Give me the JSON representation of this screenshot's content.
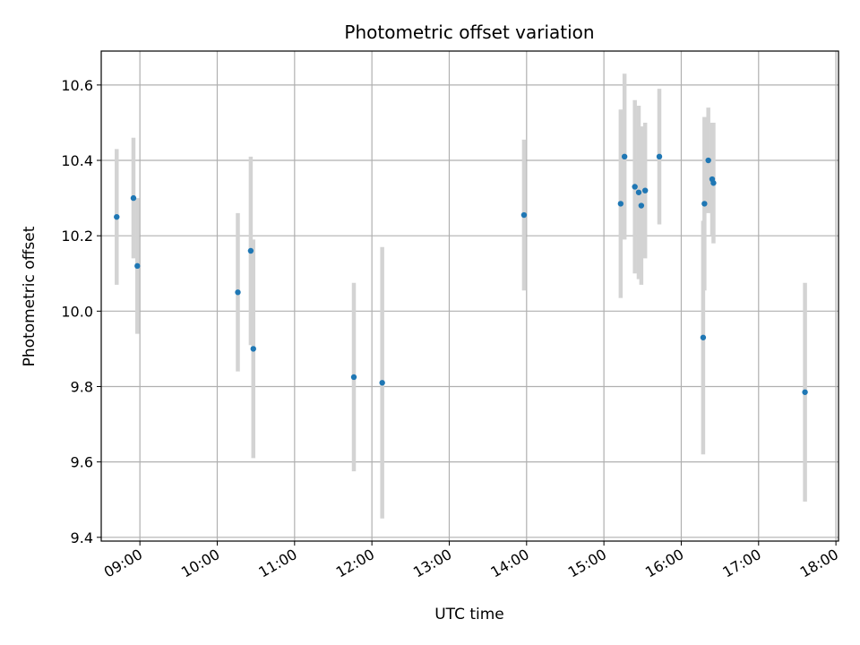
{
  "chart_data": {
    "type": "scatter",
    "title": "Photometric offset variation",
    "xlabel": "UTC time",
    "ylabel": "Photometric offset",
    "x_ticks": [
      "09:00",
      "10:00",
      "11:00",
      "12:00",
      "13:00",
      "14:00",
      "15:00",
      "16:00",
      "17:00",
      "18:00"
    ],
    "y_ticks": [
      "9.4",
      "9.6",
      "9.8",
      "10.0",
      "10.2",
      "10.4",
      "10.6"
    ],
    "xlim": [
      "08:30",
      "18:02"
    ],
    "ylim": [
      9.39,
      10.69
    ],
    "grid": true,
    "point_color": "#1f77b4",
    "errorbar_color": "#d3d3d3",
    "points": [
      {
        "x": "08:42",
        "y": 10.25,
        "err": 0.18
      },
      {
        "x": "08:55",
        "y": 10.3,
        "err": 0.16
      },
      {
        "x": "08:58",
        "y": 10.12,
        "err": 0.18
      },
      {
        "x": "10:16",
        "y": 10.05,
        "err": 0.21
      },
      {
        "x": "10:26",
        "y": 10.16,
        "err": 0.25
      },
      {
        "x": "10:28",
        "y": 9.9,
        "err": 0.29
      },
      {
        "x": "11:46",
        "y": 9.825,
        "err": 0.25
      },
      {
        "x": "12:08",
        "y": 9.81,
        "err": 0.36
      },
      {
        "x": "13:58",
        "y": 10.255,
        "err": 0.2
      },
      {
        "x": "15:13",
        "y": 10.285,
        "err": 0.25
      },
      {
        "x": "15:16",
        "y": 10.41,
        "err": 0.22
      },
      {
        "x": "15:24",
        "y": 10.33,
        "err": 0.23
      },
      {
        "x": "15:27",
        "y": 10.315,
        "err": 0.23
      },
      {
        "x": "15:29",
        "y": 10.28,
        "err": 0.21
      },
      {
        "x": "15:32",
        "y": 10.32,
        "err": 0.18
      },
      {
        "x": "15:43",
        "y": 10.41,
        "err": 0.18
      },
      {
        "x": "16:17",
        "y": 9.93,
        "err": 0.31
      },
      {
        "x": "16:18",
        "y": 10.285,
        "err": 0.23
      },
      {
        "x": "16:21",
        "y": 10.4,
        "err": 0.14
      },
      {
        "x": "16:24",
        "y": 10.35,
        "err": 0.15
      },
      {
        "x": "16:25",
        "y": 10.34,
        "err": 0.16
      },
      {
        "x": "17:36",
        "y": 9.785,
        "err": 0.29
      }
    ]
  }
}
